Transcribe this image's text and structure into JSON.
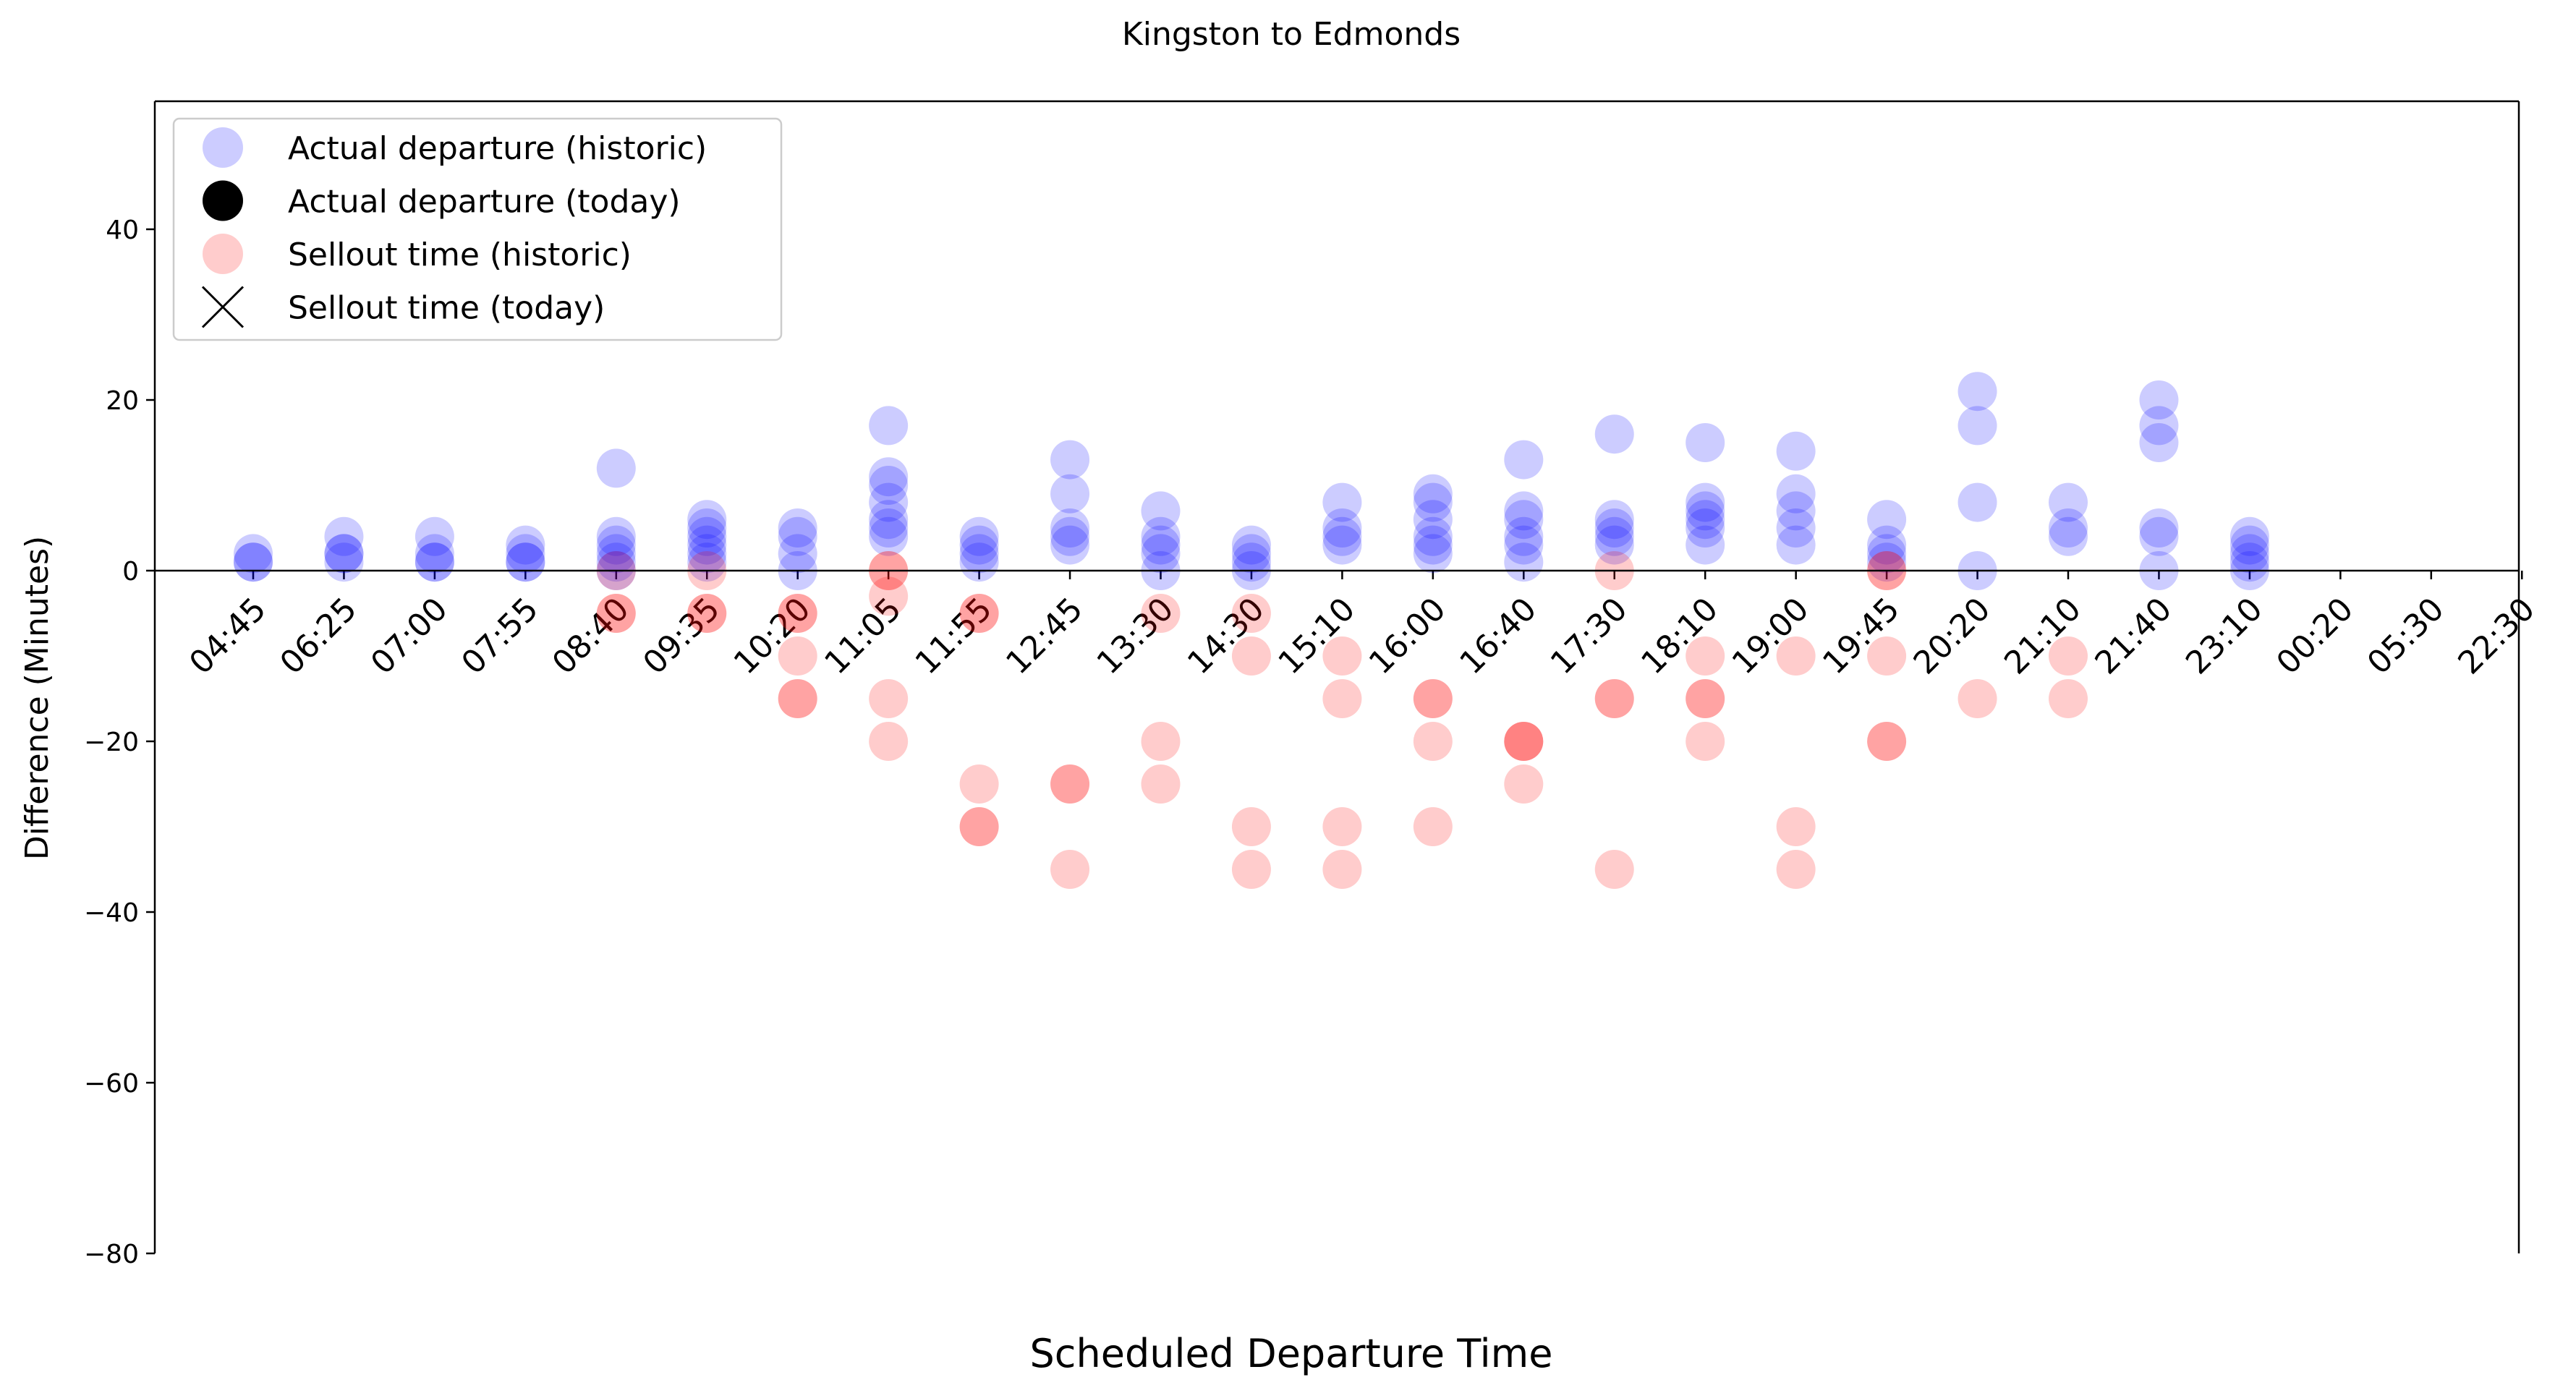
{
  "chart_data": {
    "type": "scatter",
    "title": "Kingston to Edmonds",
    "xlabel": "Scheduled Departure Time",
    "ylabel": "Difference (Minutes)",
    "ylim": [
      -80,
      55
    ],
    "yticks": [
      -80,
      -60,
      -40,
      -20,
      0,
      20,
      40
    ],
    "categories": [
      "04:45",
      "06:25",
      "07:00",
      "07:55",
      "08:40",
      "09:35",
      "10:20",
      "11:05",
      "11:55",
      "12:45",
      "13:30",
      "14:30",
      "15:10",
      "16:00",
      "16:40",
      "17:30",
      "18:10",
      "19:00",
      "19:45",
      "20:20",
      "21:10",
      "21:40",
      "23:10",
      "00:20",
      "05:30",
      "22:30"
    ],
    "legend_position": "upper-left",
    "grid": false,
    "series": [
      {
        "name": "Actual departure (historic)",
        "color": "#0000ff",
        "opacity": 0.2,
        "points": [
          [
            "04:45",
            2
          ],
          [
            "04:45",
            1
          ],
          [
            "04:45",
            1
          ],
          [
            "06:25",
            4
          ],
          [
            "06:25",
            2
          ],
          [
            "06:25",
            1
          ],
          [
            "06:25",
            2
          ],
          [
            "07:00",
            4
          ],
          [
            "07:00",
            2
          ],
          [
            "07:00",
            1
          ],
          [
            "07:00",
            1
          ],
          [
            "07:55",
            3
          ],
          [
            "07:55",
            2
          ],
          [
            "07:55",
            1
          ],
          [
            "07:55",
            1
          ],
          [
            "08:40",
            12
          ],
          [
            "08:40",
            4
          ],
          [
            "08:40",
            3
          ],
          [
            "08:40",
            2
          ],
          [
            "08:40",
            1
          ],
          [
            "08:40",
            0
          ],
          [
            "09:35",
            6
          ],
          [
            "09:35",
            5
          ],
          [
            "09:35",
            4
          ],
          [
            "09:35",
            3
          ],
          [
            "09:35",
            2
          ],
          [
            "09:35",
            1
          ],
          [
            "10:20",
            5
          ],
          [
            "10:20",
            4
          ],
          [
            "10:20",
            2
          ],
          [
            "10:20",
            0
          ],
          [
            "11:05",
            17
          ],
          [
            "11:05",
            11
          ],
          [
            "11:05",
            10
          ],
          [
            "11:05",
            8
          ],
          [
            "11:05",
            6
          ],
          [
            "11:05",
            5
          ],
          [
            "11:05",
            4
          ],
          [
            "11:55",
            4
          ],
          [
            "11:55",
            3
          ],
          [
            "11:55",
            2
          ],
          [
            "11:55",
            1
          ],
          [
            "12:45",
            13
          ],
          [
            "12:45",
            9
          ],
          [
            "12:45",
            5
          ],
          [
            "12:45",
            4
          ],
          [
            "12:45",
            3
          ],
          [
            "13:30",
            7
          ],
          [
            "13:30",
            4
          ],
          [
            "13:30",
            3
          ],
          [
            "13:30",
            2
          ],
          [
            "13:30",
            0
          ],
          [
            "14:30",
            3
          ],
          [
            "14:30",
            2
          ],
          [
            "14:30",
            1
          ],
          [
            "14:30",
            0
          ],
          [
            "15:10",
            8
          ],
          [
            "15:10",
            5
          ],
          [
            "15:10",
            4
          ],
          [
            "15:10",
            3
          ],
          [
            "16:00",
            9
          ],
          [
            "16:00",
            8
          ],
          [
            "16:00",
            6
          ],
          [
            "16:00",
            4
          ],
          [
            "16:00",
            3
          ],
          [
            "16:00",
            2
          ],
          [
            "16:40",
            13
          ],
          [
            "16:40",
            7
          ],
          [
            "16:40",
            6
          ],
          [
            "16:40",
            4
          ],
          [
            "16:40",
            3
          ],
          [
            "16:40",
            1
          ],
          [
            "17:30",
            16
          ],
          [
            "17:30",
            6
          ],
          [
            "17:30",
            5
          ],
          [
            "17:30",
            4
          ],
          [
            "17:30",
            3
          ],
          [
            "18:10",
            15
          ],
          [
            "18:10",
            8
          ],
          [
            "18:10",
            7
          ],
          [
            "18:10",
            6
          ],
          [
            "18:10",
            5
          ],
          [
            "18:10",
            3
          ],
          [
            "19:00",
            14
          ],
          [
            "19:00",
            9
          ],
          [
            "19:00",
            7
          ],
          [
            "19:00",
            5
          ],
          [
            "19:00",
            3
          ],
          [
            "19:45",
            6
          ],
          [
            "19:45",
            3
          ],
          [
            "19:45",
            2
          ],
          [
            "19:45",
            1
          ],
          [
            "20:20",
            21
          ],
          [
            "20:20",
            17
          ],
          [
            "20:20",
            8
          ],
          [
            "20:20",
            0
          ],
          [
            "21:10",
            8
          ],
          [
            "21:10",
            5
          ],
          [
            "21:10",
            4
          ],
          [
            "21:40",
            20
          ],
          [
            "21:40",
            17
          ],
          [
            "21:40",
            15
          ],
          [
            "21:40",
            5
          ],
          [
            "21:40",
            4
          ],
          [
            "21:40",
            0
          ],
          [
            "23:10",
            4
          ],
          [
            "23:10",
            3
          ],
          [
            "23:10",
            2
          ],
          [
            "23:10",
            1
          ],
          [
            "23:10",
            0
          ]
        ]
      },
      {
        "name": "Actual departure (today)",
        "color": "#000000",
        "points": []
      },
      {
        "name": "Sellout time (historic)",
        "color": "#ff0000",
        "opacity": 0.2,
        "points": [
          [
            "08:40",
            -5
          ],
          [
            "08:40",
            -5
          ],
          [
            "08:40",
            0
          ],
          [
            "09:35",
            -5
          ],
          [
            "09:35",
            -5
          ],
          [
            "09:35",
            0
          ],
          [
            "10:20",
            -5
          ],
          [
            "10:20",
            -5
          ],
          [
            "10:20",
            -10
          ],
          [
            "10:20",
            -15
          ],
          [
            "10:20",
            -15
          ],
          [
            "11:05",
            0
          ],
          [
            "11:05",
            0
          ],
          [
            "11:05",
            -3
          ],
          [
            "11:05",
            -15
          ],
          [
            "11:05",
            -20
          ],
          [
            "11:55",
            -5
          ],
          [
            "11:55",
            -5
          ],
          [
            "11:55",
            -25
          ],
          [
            "11:55",
            -30
          ],
          [
            "11:55",
            -30
          ],
          [
            "12:45",
            -25
          ],
          [
            "12:45",
            -25
          ],
          [
            "12:45",
            -35
          ],
          [
            "13:30",
            -5
          ],
          [
            "13:30",
            -20
          ],
          [
            "13:30",
            -25
          ],
          [
            "14:30",
            -5
          ],
          [
            "14:30",
            -10
          ],
          [
            "14:30",
            -30
          ],
          [
            "14:30",
            -35
          ],
          [
            "15:10",
            -10
          ],
          [
            "15:10",
            -15
          ],
          [
            "15:10",
            -30
          ],
          [
            "15:10",
            -35
          ],
          [
            "16:00",
            -15
          ],
          [
            "16:00",
            -15
          ],
          [
            "16:00",
            -20
          ],
          [
            "16:00",
            -30
          ],
          [
            "16:40",
            -20
          ],
          [
            "16:40",
            -20
          ],
          [
            "16:40",
            -20
          ],
          [
            "16:40",
            -25
          ],
          [
            "17:30",
            0
          ],
          [
            "17:30",
            -15
          ],
          [
            "17:30",
            -15
          ],
          [
            "17:30",
            -35
          ],
          [
            "18:10",
            -10
          ],
          [
            "18:10",
            -15
          ],
          [
            "18:10",
            -15
          ],
          [
            "18:10",
            -20
          ],
          [
            "19:00",
            -10
          ],
          [
            "19:00",
            -30
          ],
          [
            "19:00",
            -35
          ],
          [
            "19:45",
            0
          ],
          [
            "19:45",
            0
          ],
          [
            "19:45",
            -10
          ],
          [
            "19:45",
            -20
          ],
          [
            "19:45",
            -20
          ],
          [
            "20:20",
            -15
          ],
          [
            "21:10",
            -10
          ],
          [
            "21:10",
            -15
          ]
        ]
      },
      {
        "name": "Sellout time (today)",
        "color": "#000000",
        "marker": "x",
        "points": []
      }
    ]
  }
}
